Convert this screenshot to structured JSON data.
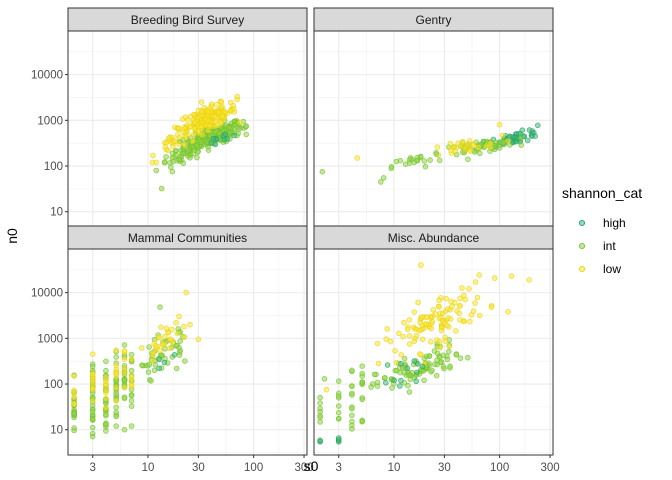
{
  "chart_data": {
    "type": "scatter",
    "facets": [
      "Breeding Bird Survey",
      "Gentry",
      "Mammal Communities",
      "Misc. Abundance"
    ],
    "xlabel": "s0",
    "ylabel": "n0",
    "x_scale": "log10",
    "y_scale": "log10",
    "xlim": [
      1.75,
      320
    ],
    "ylim": [
      2.8,
      90000
    ],
    "x_ticks": [
      3,
      10,
      30,
      100,
      300
    ],
    "x_tick_labels": [
      "3",
      "10",
      "30",
      "100",
      "300"
    ],
    "y_ticks": [
      10,
      100,
      1000,
      10000
    ],
    "y_tick_labels": [
      "10",
      "100",
      "1000",
      "10000"
    ],
    "grid": true,
    "legend": {
      "title": "shannon_cat",
      "position": "right",
      "entries": [
        {
          "label": "high",
          "color": "#3bbf7a"
        },
        {
          "label": "int",
          "color": "#8fd744"
        },
        {
          "label": "low",
          "color": "#fde725"
        }
      ]
    },
    "point_alpha": 0.55,
    "panels": [
      {
        "facet": "Breeding Bird Survey",
        "clusters": [
          {
            "series": "int",
            "n": 230,
            "x": [
              20,
              85
            ],
            "y": [
              150,
              1400
            ],
            "corr": 0.5
          },
          {
            "series": "low",
            "n": 160,
            "x": [
              18,
              75
            ],
            "y": [
              350,
              3500
            ],
            "corr": 0.45
          },
          {
            "series": "int",
            "n": 40,
            "x": [
              12,
              35
            ],
            "y": [
              60,
              400
            ],
            "corr": 0.5
          },
          {
            "series": "low",
            "n": 25,
            "x": [
              11,
              30
            ],
            "y": [
              120,
              900
            ],
            "corr": 0.4
          },
          {
            "series": "high",
            "n": 10,
            "x": [
              35,
              80
            ],
            "y": [
              250,
              700
            ],
            "corr": 0.3
          }
        ],
        "points": [
          {
            "x": 13.5,
            "y": 32,
            "series": "int"
          },
          {
            "x": 12,
            "y": 120,
            "series": "low"
          },
          {
            "x": 17,
            "y": 75,
            "series": "int"
          },
          {
            "x": 70,
            "y": 3300,
            "series": "low"
          }
        ]
      },
      {
        "facet": "Gentry",
        "clusters": [
          {
            "series": "high",
            "n": 50,
            "x": [
              70,
              270
            ],
            "y": [
              220,
              750
            ],
            "corr": 0.5
          },
          {
            "series": "int",
            "n": 50,
            "x": [
              25,
              160
            ],
            "y": [
              140,
              500
            ],
            "corr": 0.5
          },
          {
            "series": "low",
            "n": 25,
            "x": [
              14,
              120
            ],
            "y": [
              120,
              500
            ],
            "corr": 0.4
          },
          {
            "series": "int",
            "n": 20,
            "x": [
              9,
              30
            ],
            "y": [
              60,
              260
            ],
            "corr": 0.4
          }
        ],
        "points": [
          {
            "x": 2.1,
            "y": 75,
            "series": "int"
          },
          {
            "x": 4.5,
            "y": 150,
            "series": "low"
          },
          {
            "x": 8,
            "y": 55,
            "series": "int"
          },
          {
            "x": 7.5,
            "y": 45,
            "series": "int"
          },
          {
            "x": 100,
            "y": 800,
            "series": "low"
          },
          {
            "x": 230,
            "y": 780,
            "series": "high"
          }
        ]
      },
      {
        "facet": "Mammal Communities",
        "columns": [
          {
            "x": 2,
            "series": "int",
            "n": 22,
            "y": [
              4,
              200
            ]
          },
          {
            "x": 2,
            "series": "low",
            "n": 6,
            "y": [
              15,
              180
            ]
          },
          {
            "x": 3,
            "series": "int",
            "n": 30,
            "y": [
              5,
              600
            ]
          },
          {
            "x": 3,
            "series": "low",
            "n": 10,
            "y": [
              30,
              450
            ]
          },
          {
            "x": 4,
            "series": "int",
            "n": 28,
            "y": [
              6,
              500
            ]
          },
          {
            "x": 4,
            "series": "low",
            "n": 8,
            "y": [
              30,
              400
            ]
          },
          {
            "x": 5,
            "series": "int",
            "n": 24,
            "y": [
              8,
              700
            ]
          },
          {
            "x": 5,
            "series": "low",
            "n": 8,
            "y": [
              40,
              600
            ]
          },
          {
            "x": 6,
            "series": "int",
            "n": 20,
            "y": [
              10,
              900
            ]
          },
          {
            "x": 6,
            "series": "low",
            "n": 6,
            "y": [
              40,
              700
            ]
          },
          {
            "x": 7,
            "series": "int",
            "n": 14,
            "y": [
              12,
              1100
            ]
          },
          {
            "x": 7,
            "series": "low",
            "n": 5,
            "y": [
              50,
              800
            ]
          }
        ],
        "clusters": [
          {
            "series": "int",
            "n": 45,
            "x": [
              8,
              28
            ],
            "y": [
              60,
              4500
            ],
            "corr": 0.5
          },
          {
            "series": "low",
            "n": 30,
            "x": [
              8,
              25
            ],
            "y": [
              100,
              5000
            ],
            "corr": 0.5
          },
          {
            "series": "high",
            "n": 4,
            "x": [
              10,
              20
            ],
            "y": [
              150,
              700
            ],
            "corr": 0.2
          }
        ],
        "points": [
          {
            "x": 23,
            "y": 10000,
            "series": "low"
          },
          {
            "x": 30,
            "y": 950,
            "series": "low"
          },
          {
            "x": 13,
            "y": 4800,
            "series": "int"
          }
        ]
      },
      {
        "facet": "Misc. Abundance",
        "columns": [
          {
            "x": 2,
            "series": "int",
            "n": 8,
            "y": [
              5,
              70
            ]
          },
          {
            "x": 2,
            "series": "high",
            "n": 2,
            "y": [
              5,
              6
            ]
          },
          {
            "x": 3,
            "series": "int",
            "n": 10,
            "y": [
              5,
              130
            ]
          },
          {
            "x": 3,
            "series": "high",
            "n": 3,
            "y": [
              5,
              8
            ]
          },
          {
            "x": 4,
            "series": "int",
            "n": 12,
            "y": [
              8,
              200
            ]
          },
          {
            "x": 5,
            "series": "int",
            "n": 12,
            "y": [
              10,
              300
            ]
          }
        ],
        "clusters": [
          {
            "series": "int",
            "n": 90,
            "x": [
              6,
              50
            ],
            "y": [
              30,
              1500
            ],
            "corr": 0.5
          },
          {
            "series": "low",
            "n": 110,
            "x": [
              7,
              90
            ],
            "y": [
              150,
              40000
            ],
            "corr": 0.5
          },
          {
            "series": "high",
            "n": 12,
            "x": [
              7,
              30
            ],
            "y": [
              40,
              700
            ],
            "corr": 0.4
          }
        ],
        "points": [
          {
            "x": 2.2,
            "y": 130,
            "series": "int"
          },
          {
            "x": 2.3,
            "y": 75,
            "series": "low"
          },
          {
            "x": 130,
            "y": 23000,
            "series": "low"
          },
          {
            "x": 190,
            "y": 19000,
            "series": "low"
          },
          {
            "x": 120,
            "y": 3800,
            "series": "low"
          },
          {
            "x": 18,
            "y": 40000,
            "series": "low"
          }
        ]
      }
    ]
  }
}
